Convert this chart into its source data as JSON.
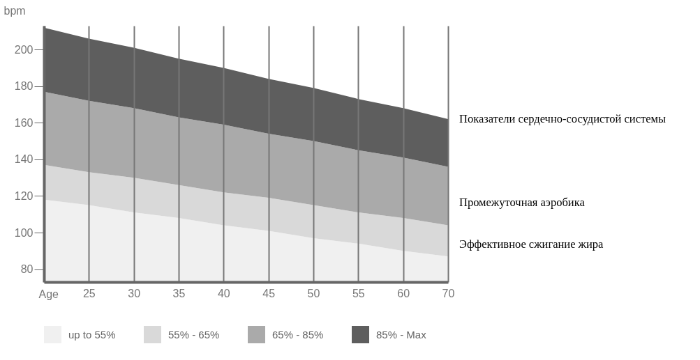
{
  "chart_data": {
    "type": "area",
    "xlabel": "Age",
    "ylabel": "bpm",
    "categories": [
      null,
      "25",
      "30",
      "35",
      "40",
      "45",
      "50",
      "55",
      "60",
      "70"
    ],
    "series": [
      {
        "name": "up to 55%",
        "color": "#f0f0f0",
        "values": [
          118,
          115,
          111,
          108,
          104,
          101,
          97,
          94,
          90,
          87
        ]
      },
      {
        "name": "55% - 65%",
        "color": "#d9d9d9",
        "values": [
          137,
          133,
          130,
          126,
          122,
          119,
          115,
          111,
          108,
          104
        ]
      },
      {
        "name": "65% - 85%",
        "color": "#aaaaaa",
        "values": [
          177,
          172,
          168,
          163,
          159,
          154,
          150,
          145,
          141,
          136
        ]
      },
      {
        "name": "85% - Max",
        "color": "#5e5e5e",
        "values": [
          212,
          206,
          201,
          195,
          190,
          184,
          179,
          173,
          168,
          162
        ]
      }
    ],
    "ylim": [
      73,
      213
    ],
    "yticks": [
      80,
      100,
      120,
      140,
      160,
      180,
      200
    ],
    "grid": "x",
    "legend": "bottom",
    "annotations": [
      "Показатели сердечно-сосудистой системы",
      "Промежуточная аэробика",
      "Эффективное сжигание жира"
    ]
  }
}
